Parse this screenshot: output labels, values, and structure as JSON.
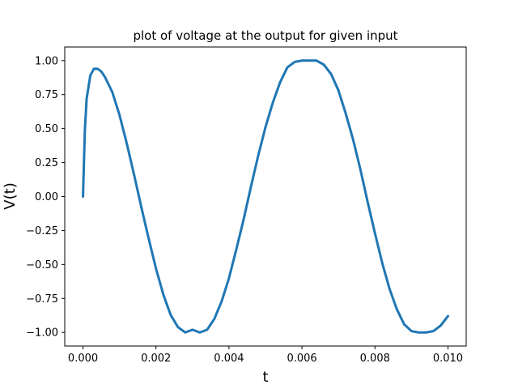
{
  "chart_data": {
    "type": "line",
    "title": "plot of voltage at the output for given input",
    "xlabel": "t",
    "ylabel": "V(t)",
    "xlim": [
      -0.0005,
      0.0105
    ],
    "ylim": [
      -1.1,
      1.1
    ],
    "x_ticks": [
      0.0,
      0.002,
      0.004,
      0.006,
      0.008,
      0.01
    ],
    "x_tick_labels": [
      "0.000",
      "0.002",
      "0.004",
      "0.006",
      "0.008",
      "0.010"
    ],
    "y_ticks": [
      1.0,
      0.75,
      0.5,
      0.25,
      0.0,
      -0.25,
      -0.5,
      -0.75,
      -1.0
    ],
    "y_tick_labels": [
      "1.00",
      "0.75",
      "0.50",
      "0.25",
      "0.00",
      "−0.25",
      "−0.50",
      "−0.75",
      "−1.00"
    ],
    "grid": false,
    "legend": "none",
    "series": [
      {
        "color": "#1f77b4",
        "x": [
          0.0,
          5e-05,
          0.0001,
          0.0002,
          0.0003,
          0.0004,
          0.0005,
          0.0006,
          0.0008,
          0.001,
          0.0012,
          0.0014,
          0.0016,
          0.0018,
          0.002,
          0.0022,
          0.0024,
          0.0026,
          0.0028,
          0.003,
          0.0032,
          0.0034,
          0.0036,
          0.0038,
          0.004,
          0.0042,
          0.0044,
          0.0046,
          0.0048,
          0.005,
          0.0052,
          0.0054,
          0.0056,
          0.0058,
          0.006,
          0.0062,
          0.0064,
          0.0066,
          0.0068,
          0.007,
          0.0072,
          0.0074,
          0.0076,
          0.0078,
          0.008,
          0.0082,
          0.0084,
          0.0086,
          0.0088,
          0.009,
          0.0092,
          0.0094,
          0.0096,
          0.0098,
          0.01
        ],
        "y": [
          0.0,
          0.48,
          0.72,
          0.89,
          0.94,
          0.94,
          0.92,
          0.88,
          0.77,
          0.6,
          0.39,
          0.16,
          -0.08,
          -0.31,
          -0.53,
          -0.72,
          -0.87,
          -0.96,
          -1.0,
          -0.98,
          -1.0,
          -0.98,
          -0.9,
          -0.77,
          -0.6,
          -0.39,
          -0.17,
          0.07,
          0.3,
          0.51,
          0.69,
          0.84,
          0.95,
          0.99,
          1.0,
          1.0,
          1.0,
          0.97,
          0.9,
          0.78,
          0.61,
          0.42,
          0.2,
          -0.04,
          -0.27,
          -0.49,
          -0.68,
          -0.83,
          -0.94,
          -0.99,
          -1.0,
          -1.0,
          -0.99,
          -0.95,
          -0.88
        ]
      }
    ]
  }
}
